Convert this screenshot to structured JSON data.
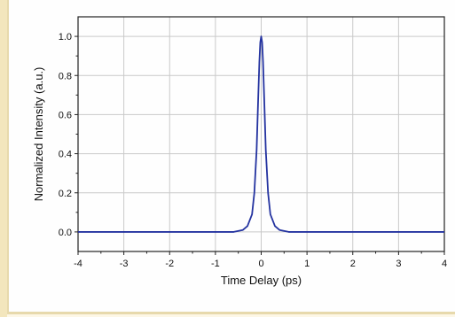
{
  "chart_data": {
    "type": "line",
    "title": "",
    "xlabel": "Time Delay (ps)",
    "ylabel": "Normalized Intensity (a.u.)",
    "xlim": [
      -4,
      4
    ],
    "ylim": [
      -0.1,
      1.1
    ],
    "xticks": [
      -4,
      -3,
      -2,
      -1,
      0,
      1,
      2,
      3,
      4
    ],
    "xtick_labels": [
      "-4",
      "-3",
      "-2",
      "-1",
      "0",
      "1",
      "2",
      "3",
      "4"
    ],
    "yticks": [
      0.0,
      0.2,
      0.4,
      0.6,
      0.8,
      1.0
    ],
    "ytick_labels": [
      "0.0",
      "0.2",
      "0.4",
      "0.6",
      "0.8",
      "1.0"
    ],
    "grid": true,
    "line_color": "#2433a0",
    "series": [
      {
        "x": [
          -4.0,
          -3.0,
          -2.0,
          -1.0,
          -0.6,
          -0.4,
          -0.3,
          -0.2,
          -0.15,
          -0.1,
          -0.07,
          -0.04,
          -0.02,
          0.0,
          0.02,
          0.04,
          0.07,
          0.1,
          0.15,
          0.2,
          0.3,
          0.4,
          0.6,
          1.0,
          2.0,
          3.0,
          4.0
        ],
        "y": [
          0.0,
          0.0,
          0.0,
          0.0,
          0.0,
          0.01,
          0.03,
          0.09,
          0.2,
          0.42,
          0.65,
          0.87,
          0.97,
          1.0,
          0.97,
          0.87,
          0.65,
          0.42,
          0.2,
          0.09,
          0.03,
          0.01,
          0.0,
          0.0,
          0.0,
          0.0,
          0.0
        ]
      }
    ]
  }
}
